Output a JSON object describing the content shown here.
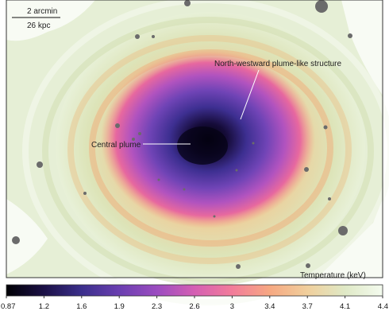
{
  "scale_bar": {
    "angular_label": "2 arcmin",
    "physical_label": "26 kpc"
  },
  "annotations": {
    "central_plume": "Central plume",
    "northwest_structure": "North-westward plume-like structure"
  },
  "colorbar": {
    "title": "Temperature (keV)",
    "ticks": [
      "0.87",
      "1.2",
      "1.6",
      "1.9",
      "2.3",
      "2.6",
      "3",
      "3.4",
      "3.7",
      "4.1",
      "4.4"
    ],
    "colors": [
      "#000004",
      "#1b1046",
      "#3b2f8c",
      "#6a3fb0",
      "#9b4cc0",
      "#d45fb3",
      "#f27c9a",
      "#f6a882",
      "#f0cf9c",
      "#dfe9c6",
      "#f4fbef"
    ]
  }
}
